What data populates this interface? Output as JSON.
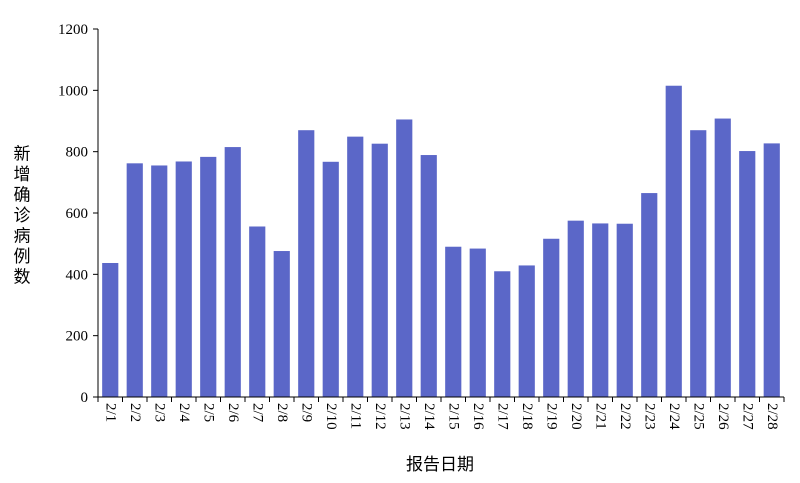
{
  "chart_data": {
    "type": "bar",
    "xlabel": "报告日期",
    "ylabel": "新增确诊病例数",
    "ylim": [
      0,
      1200
    ],
    "yticks": [
      0,
      200,
      400,
      600,
      800,
      1000,
      1200
    ],
    "grid": false,
    "legend": "none",
    "bar_color": "#5b67c8",
    "categories": [
      "2/1",
      "2/2",
      "2/3",
      "2/4",
      "2/5",
      "2/6",
      "2/7",
      "2/8",
      "2/9",
      "2/10",
      "2/11",
      "2/12",
      "2/13",
      "2/14",
      "2/15",
      "2/16",
      "2/17",
      "2/18",
      "2/19",
      "2/20",
      "2/21",
      "2/22",
      "2/23",
      "2/24",
      "2/25",
      "2/26",
      "2/27",
      "2/28"
    ],
    "values": [
      437,
      762,
      755,
      768,
      783,
      815,
      556,
      476,
      870,
      767,
      849,
      826,
      905,
      789,
      490,
      484,
      410,
      429,
      516,
      575,
      566,
      565,
      665,
      1015,
      870,
      908,
      802,
      827
    ]
  }
}
